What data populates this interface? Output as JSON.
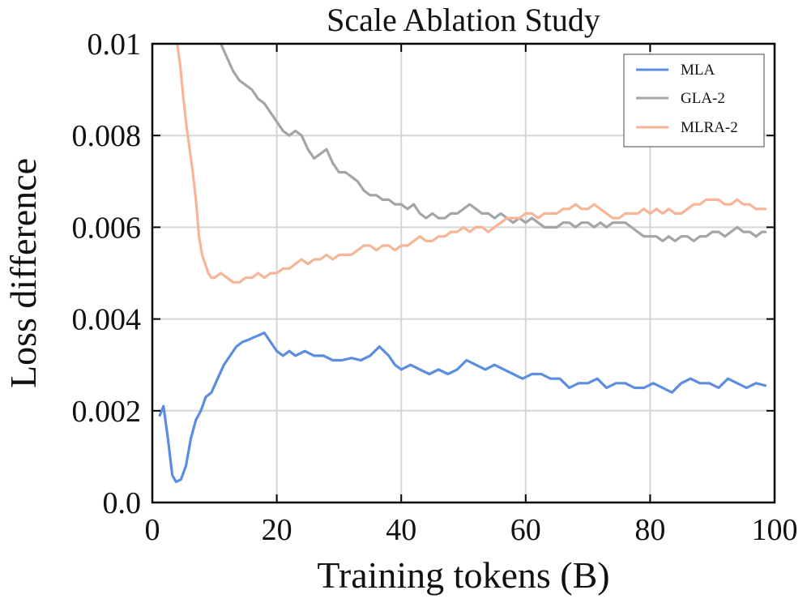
{
  "chart_data": {
    "type": "line",
    "title": "Scale Ablation Study",
    "xlabel": "Training tokens (B)",
    "ylabel": "Loss difference",
    "xlim": [
      0,
      100
    ],
    "ylim": [
      0.0,
      0.01
    ],
    "xticks": [
      0,
      20,
      40,
      60,
      80,
      100
    ],
    "xtick_labels": [
      "0",
      "20",
      "40",
      "60",
      "80",
      "100"
    ],
    "yticks": [
      0.0,
      0.002,
      0.004,
      0.006,
      0.008,
      0.01
    ],
    "ytick_labels": [
      "0.0",
      "0.002",
      "0.004",
      "0.006",
      "0.008",
      "0.01"
    ],
    "grid": true,
    "legend_position": "top-right",
    "series": [
      {
        "name": "MLA",
        "color": "#5b8ee0",
        "points": [
          [
            1.2,
            0.0019
          ],
          [
            1.8,
            0.0021
          ],
          [
            2.5,
            0.0014
          ],
          [
            3.2,
            0.0006
          ],
          [
            3.8,
            0.00045
          ],
          [
            4.6,
            0.0005
          ],
          [
            5.4,
            0.0008
          ],
          [
            6.2,
            0.0014
          ],
          [
            7.0,
            0.0018
          ],
          [
            7.8,
            0.002
          ],
          [
            8.6,
            0.0023
          ],
          [
            9.5,
            0.0024
          ],
          [
            10.5,
            0.0027
          ],
          [
            11.5,
            0.003
          ],
          [
            12.5,
            0.0032
          ],
          [
            13.5,
            0.0034
          ],
          [
            14.5,
            0.0035
          ],
          [
            15.5,
            0.00355
          ],
          [
            16.3,
            0.0036
          ],
          [
            17.2,
            0.00365
          ],
          [
            18.0,
            0.0037
          ],
          [
            19.0,
            0.0035
          ],
          [
            20.0,
            0.0033
          ],
          [
            21.0,
            0.0032
          ],
          [
            22.0,
            0.0033
          ],
          [
            23.0,
            0.0032
          ],
          [
            24.5,
            0.0033
          ],
          [
            26.0,
            0.0032
          ],
          [
            27.5,
            0.0032
          ],
          [
            29.0,
            0.0031
          ],
          [
            30.5,
            0.0031
          ],
          [
            32.0,
            0.00315
          ],
          [
            33.5,
            0.0031
          ],
          [
            35.0,
            0.0032
          ],
          [
            36.5,
            0.0034
          ],
          [
            38.0,
            0.0032
          ],
          [
            39.0,
            0.003
          ],
          [
            40.0,
            0.0029
          ],
          [
            41.5,
            0.003
          ],
          [
            43.0,
            0.0029
          ],
          [
            44.5,
            0.0028
          ],
          [
            46.0,
            0.0029
          ],
          [
            47.5,
            0.0028
          ],
          [
            49.0,
            0.0029
          ],
          [
            50.5,
            0.0031
          ],
          [
            52.0,
            0.003
          ],
          [
            53.5,
            0.0029
          ],
          [
            55.0,
            0.003
          ],
          [
            56.5,
            0.0029
          ],
          [
            58.0,
            0.0028
          ],
          [
            59.5,
            0.0027
          ],
          [
            61.0,
            0.0028
          ],
          [
            62.5,
            0.0028
          ],
          [
            64.0,
            0.0027
          ],
          [
            65.5,
            0.0027
          ],
          [
            67.0,
            0.0025
          ],
          [
            68.5,
            0.0026
          ],
          [
            70.0,
            0.0026
          ],
          [
            71.5,
            0.0027
          ],
          [
            73.0,
            0.0025
          ],
          [
            74.5,
            0.0026
          ],
          [
            76.0,
            0.0026
          ],
          [
            77.5,
            0.0025
          ],
          [
            79.0,
            0.0025
          ],
          [
            80.5,
            0.0026
          ],
          [
            82.0,
            0.0025
          ],
          [
            83.5,
            0.0024
          ],
          [
            85.0,
            0.0026
          ],
          [
            86.5,
            0.0027
          ],
          [
            88.0,
            0.0026
          ],
          [
            89.5,
            0.0026
          ],
          [
            91.0,
            0.0025
          ],
          [
            92.5,
            0.0027
          ],
          [
            94.0,
            0.0026
          ],
          [
            95.5,
            0.0025
          ],
          [
            97.0,
            0.0026
          ],
          [
            98.5,
            0.00255
          ]
        ]
      },
      {
        "name": "GLA-2",
        "color": "#a2a6a8",
        "points": [
          [
            11.0,
            0.01
          ],
          [
            12.0,
            0.0097
          ],
          [
            13.0,
            0.0094
          ],
          [
            14.0,
            0.0092
          ],
          [
            15.0,
            0.0091
          ],
          [
            16.0,
            0.009
          ],
          [
            17.0,
            0.0088
          ],
          [
            18.0,
            0.0087
          ],
          [
            19.0,
            0.0085
          ],
          [
            20.0,
            0.0083
          ],
          [
            21.0,
            0.0081
          ],
          [
            22.0,
            0.008
          ],
          [
            23.0,
            0.0081
          ],
          [
            24.0,
            0.008
          ],
          [
            25.0,
            0.0077
          ],
          [
            26.0,
            0.0075
          ],
          [
            27.0,
            0.0076
          ],
          [
            28.0,
            0.0077
          ],
          [
            29.0,
            0.0074
          ],
          [
            30.0,
            0.0072
          ],
          [
            31.0,
            0.0072
          ],
          [
            32.0,
            0.0071
          ],
          [
            33.0,
            0.007
          ],
          [
            34.0,
            0.0068
          ],
          [
            35.0,
            0.0067
          ],
          [
            36.0,
            0.0067
          ],
          [
            37.0,
            0.0066
          ],
          [
            38.0,
            0.0066
          ],
          [
            39.0,
            0.0065
          ],
          [
            40.0,
            0.0065
          ],
          [
            41.0,
            0.0064
          ],
          [
            42.0,
            0.0065
          ],
          [
            43.0,
            0.0063
          ],
          [
            44.0,
            0.0062
          ],
          [
            45.0,
            0.0063
          ],
          [
            46.0,
            0.0062
          ],
          [
            47.0,
            0.0062
          ],
          [
            48.0,
            0.0063
          ],
          [
            49.0,
            0.0063
          ],
          [
            50.0,
            0.0064
          ],
          [
            51.0,
            0.0065
          ],
          [
            52.0,
            0.0064
          ],
          [
            53.0,
            0.0063
          ],
          [
            54.0,
            0.0063
          ],
          [
            55.0,
            0.0062
          ],
          [
            56.0,
            0.0063
          ],
          [
            57.0,
            0.0062
          ],
          [
            58.0,
            0.0061
          ],
          [
            59.0,
            0.0062
          ],
          [
            60.0,
            0.0061
          ],
          [
            61.0,
            0.0062
          ],
          [
            62.0,
            0.0061
          ],
          [
            63.0,
            0.006
          ],
          [
            64.0,
            0.006
          ],
          [
            65.0,
            0.006
          ],
          [
            66.0,
            0.0061
          ],
          [
            67.0,
            0.0061
          ],
          [
            68.0,
            0.006
          ],
          [
            69.0,
            0.0061
          ],
          [
            70.0,
            0.0061
          ],
          [
            71.0,
            0.006
          ],
          [
            72.0,
            0.0061
          ],
          [
            73.0,
            0.006
          ],
          [
            74.0,
            0.0061
          ],
          [
            75.0,
            0.0061
          ],
          [
            76.0,
            0.0061
          ],
          [
            77.0,
            0.006
          ],
          [
            78.0,
            0.0059
          ],
          [
            79.0,
            0.0058
          ],
          [
            80.0,
            0.0058
          ],
          [
            81.0,
            0.0058
          ],
          [
            82.0,
            0.0057
          ],
          [
            83.0,
            0.0058
          ],
          [
            84.0,
            0.0057
          ],
          [
            85.0,
            0.0058
          ],
          [
            86.0,
            0.0058
          ],
          [
            87.0,
            0.0057
          ],
          [
            88.0,
            0.0058
          ],
          [
            89.0,
            0.0058
          ],
          [
            90.0,
            0.0059
          ],
          [
            91.0,
            0.0059
          ],
          [
            92.0,
            0.0058
          ],
          [
            93.0,
            0.0059
          ],
          [
            94.0,
            0.006
          ],
          [
            95.0,
            0.0059
          ],
          [
            96.0,
            0.0059
          ],
          [
            97.0,
            0.0058
          ],
          [
            98.0,
            0.0059
          ],
          [
            98.5,
            0.0059
          ]
        ]
      },
      {
        "name": "MLRA-2",
        "color": "#f6b596",
        "points": [
          [
            4.0,
            0.01
          ],
          [
            4.5,
            0.0095
          ],
          [
            5.0,
            0.0088
          ],
          [
            5.5,
            0.0082
          ],
          [
            6.0,
            0.0077
          ],
          [
            6.5,
            0.0072
          ],
          [
            7.0,
            0.0066
          ],
          [
            7.5,
            0.0058
          ],
          [
            8.0,
            0.0054
          ],
          [
            8.5,
            0.0052
          ],
          [
            9.0,
            0.005
          ],
          [
            9.5,
            0.0049
          ],
          [
            10.0,
            0.0049
          ],
          [
            11.0,
            0.005
          ],
          [
            12.0,
            0.0049
          ],
          [
            13.0,
            0.0048
          ],
          [
            14.0,
            0.0048
          ],
          [
            15.0,
            0.0049
          ],
          [
            16.0,
            0.0049
          ],
          [
            17.0,
            0.005
          ],
          [
            18.0,
            0.0049
          ],
          [
            19.0,
            0.005
          ],
          [
            20.0,
            0.005
          ],
          [
            21.0,
            0.0051
          ],
          [
            22.0,
            0.0051
          ],
          [
            23.0,
            0.0052
          ],
          [
            24.0,
            0.0053
          ],
          [
            25.0,
            0.0052
          ],
          [
            26.0,
            0.0053
          ],
          [
            27.0,
            0.0053
          ],
          [
            28.0,
            0.0054
          ],
          [
            29.0,
            0.0053
          ],
          [
            30.0,
            0.0054
          ],
          [
            31.0,
            0.0054
          ],
          [
            32.0,
            0.0054
          ],
          [
            33.0,
            0.0055
          ],
          [
            34.0,
            0.0056
          ],
          [
            35.0,
            0.0056
          ],
          [
            36.0,
            0.0055
          ],
          [
            37.0,
            0.0056
          ],
          [
            38.0,
            0.0056
          ],
          [
            39.0,
            0.0055
          ],
          [
            40.0,
            0.0056
          ],
          [
            41.0,
            0.0056
          ],
          [
            42.0,
            0.0057
          ],
          [
            43.0,
            0.0058
          ],
          [
            44.0,
            0.0057
          ],
          [
            45.0,
            0.0057
          ],
          [
            46.0,
            0.0058
          ],
          [
            47.0,
            0.0058
          ],
          [
            48.0,
            0.0059
          ],
          [
            49.0,
            0.0059
          ],
          [
            50.0,
            0.006
          ],
          [
            51.0,
            0.0059
          ],
          [
            52.0,
            0.006
          ],
          [
            53.0,
            0.006
          ],
          [
            54.0,
            0.0059
          ],
          [
            55.0,
            0.006
          ],
          [
            56.0,
            0.0061
          ],
          [
            57.0,
            0.0062
          ],
          [
            58.0,
            0.0062
          ],
          [
            59.0,
            0.0062
          ],
          [
            60.0,
            0.0063
          ],
          [
            61.0,
            0.0063
          ],
          [
            62.0,
            0.0062
          ],
          [
            63.0,
            0.0063
          ],
          [
            64.0,
            0.0063
          ],
          [
            65.0,
            0.0063
          ],
          [
            66.0,
            0.0064
          ],
          [
            67.0,
            0.0064
          ],
          [
            68.0,
            0.0065
          ],
          [
            69.0,
            0.0064
          ],
          [
            70.0,
            0.0064
          ],
          [
            71.0,
            0.0065
          ],
          [
            72.0,
            0.0064
          ],
          [
            73.0,
            0.0063
          ],
          [
            74.0,
            0.0062
          ],
          [
            75.0,
            0.0062
          ],
          [
            76.0,
            0.0063
          ],
          [
            77.0,
            0.0063
          ],
          [
            78.0,
            0.0063
          ],
          [
            79.0,
            0.0064
          ],
          [
            80.0,
            0.0063
          ],
          [
            81.0,
            0.0064
          ],
          [
            82.0,
            0.0063
          ],
          [
            83.0,
            0.0064
          ],
          [
            84.0,
            0.0063
          ],
          [
            85.0,
            0.0063
          ],
          [
            86.0,
            0.0064
          ],
          [
            87.0,
            0.0065
          ],
          [
            88.0,
            0.0065
          ],
          [
            89.0,
            0.0066
          ],
          [
            90.0,
            0.0066
          ],
          [
            91.0,
            0.0066
          ],
          [
            92.0,
            0.0065
          ],
          [
            93.0,
            0.0065
          ],
          [
            94.0,
            0.0066
          ],
          [
            95.0,
            0.0065
          ],
          [
            96.0,
            0.0065
          ],
          [
            97.0,
            0.0064
          ],
          [
            98.0,
            0.0064
          ],
          [
            98.5,
            0.0064
          ]
        ]
      }
    ]
  }
}
